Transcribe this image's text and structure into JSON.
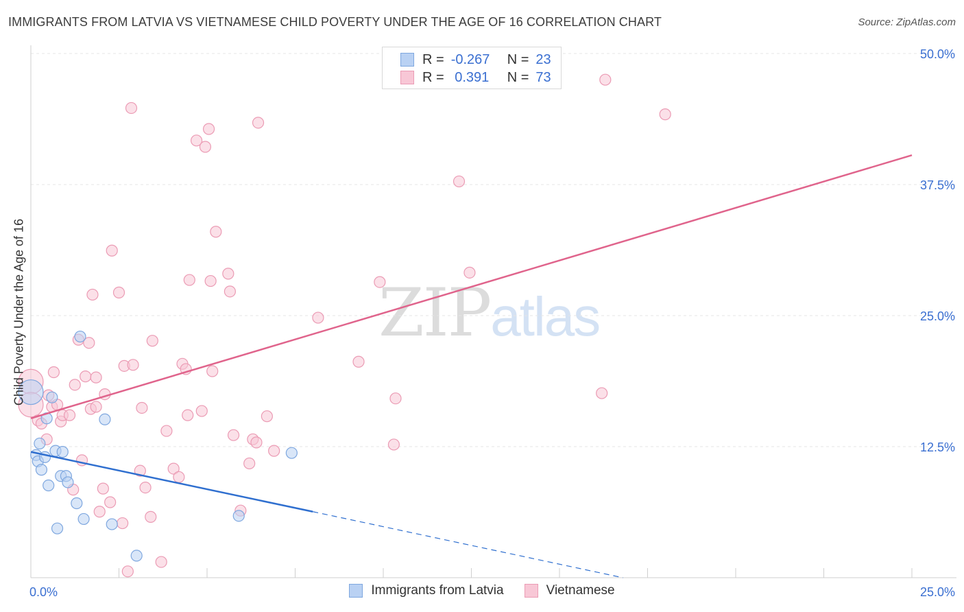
{
  "header": {
    "title": "IMMIGRANTS FROM LATVIA VS VIETNAMESE CHILD POVERTY UNDER THE AGE OF 16 CORRELATION CHART",
    "source": "Source: ZipAtlas.com"
  },
  "watermark": {
    "zip": "ZIP",
    "atlas": "atlas"
  },
  "legend": {
    "rows": [
      {
        "r_label": "R =",
        "r_value": "-0.267",
        "n_label": "N =",
        "n_value": "23"
      },
      {
        "r_label": "R =",
        "r_value": " 0.391",
        "n_label": "N =",
        "n_value": "73"
      }
    ]
  },
  "chart_data": {
    "type": "scatter",
    "title": "IMMIGRANTS FROM LATVIA VS VIETNAMESE CHILD POVERTY UNDER THE AGE OF 16 CORRELATION CHART",
    "xlabel": "",
    "ylabel": "Child Poverty Under the Age of 16",
    "xlim": [
      0,
      25
    ],
    "ylim": [
      0,
      50
    ],
    "x_tick_labels": [
      "0.0%",
      "25.0%"
    ],
    "y_ticks": [
      12.5,
      25.0,
      37.5,
      50.0
    ],
    "y_tick_labels": [
      "12.5%",
      "25.0%",
      "37.5%",
      "50.0%"
    ],
    "grid": true,
    "colors": {
      "latvia_fill": "#b9d1f3",
      "latvia_stroke": "#7ea7df",
      "latvia_line": "#2f6fcf",
      "viet_fill": "#f8c7d6",
      "viet_stroke": "#eb9bb4",
      "viet_line": "#e0648c",
      "tick_label": "#3a6fd1"
    },
    "series": [
      {
        "name": "Immigrants from Latvia",
        "r": -0.267,
        "n": 23,
        "points": [
          {
            "x": 0.0,
            "y": 17.7,
            "s": "large"
          },
          {
            "x": 0.15,
            "y": 11.7
          },
          {
            "x": 0.2,
            "y": 11.1
          },
          {
            "x": 0.25,
            "y": 12.8
          },
          {
            "x": 0.3,
            "y": 10.3
          },
          {
            "x": 0.4,
            "y": 11.5
          },
          {
            "x": 0.45,
            "y": 15.2
          },
          {
            "x": 0.5,
            "y": 8.8
          },
          {
            "x": 0.6,
            "y": 17.2
          },
          {
            "x": 0.7,
            "y": 12.1
          },
          {
            "x": 0.75,
            "y": 4.7
          },
          {
            "x": 0.85,
            "y": 9.7
          },
          {
            "x": 0.9,
            "y": 12.0
          },
          {
            "x": 1.0,
            "y": 9.7
          },
          {
            "x": 1.05,
            "y": 9.1
          },
          {
            "x": 1.3,
            "y": 7.1
          },
          {
            "x": 1.5,
            "y": 5.6
          },
          {
            "x": 1.4,
            "y": 23.0
          },
          {
            "x": 2.1,
            "y": 15.1
          },
          {
            "x": 2.3,
            "y": 5.1
          },
          {
            "x": 3.0,
            "y": 2.1
          },
          {
            "x": 5.9,
            "y": 5.9
          },
          {
            "x": 7.4,
            "y": 11.9
          }
        ],
        "trend": {
          "x": [
            0.0,
            8.0
          ],
          "y": [
            12.0,
            6.3
          ]
        },
        "trend_extension": {
          "x": [
            8.0,
            16.8
          ],
          "y": [
            6.3,
            0.0
          ]
        }
      },
      {
        "name": "Vietnamese",
        "r": 0.391,
        "n": 73,
        "points": [
          {
            "x": 0.0,
            "y": 18.7,
            "s": "large"
          },
          {
            "x": 0.0,
            "y": 16.5,
            "s": "large"
          },
          {
            "x": 0.2,
            "y": 15.0
          },
          {
            "x": 0.3,
            "y": 14.7
          },
          {
            "x": 0.45,
            "y": 13.2
          },
          {
            "x": 0.5,
            "y": 17.4
          },
          {
            "x": 0.6,
            "y": 16.3
          },
          {
            "x": 0.65,
            "y": 19.6
          },
          {
            "x": 0.75,
            "y": 16.5
          },
          {
            "x": 0.85,
            "y": 14.9
          },
          {
            "x": 0.9,
            "y": 15.5
          },
          {
            "x": 1.1,
            "y": 15.5
          },
          {
            "x": 1.2,
            "y": 8.4
          },
          {
            "x": 1.25,
            "y": 18.4
          },
          {
            "x": 1.35,
            "y": 22.7
          },
          {
            "x": 1.45,
            "y": 11.2
          },
          {
            "x": 1.55,
            "y": 19.2
          },
          {
            "x": 1.65,
            "y": 22.4
          },
          {
            "x": 1.7,
            "y": 16.1
          },
          {
            "x": 1.75,
            "y": 27.0
          },
          {
            "x": 1.85,
            "y": 16.3
          },
          {
            "x": 1.85,
            "y": 19.1
          },
          {
            "x": 1.95,
            "y": 6.3
          },
          {
            "x": 2.05,
            "y": 8.5
          },
          {
            "x": 2.1,
            "y": 17.5
          },
          {
            "x": 2.25,
            "y": 7.2
          },
          {
            "x": 2.3,
            "y": 31.2
          },
          {
            "x": 2.5,
            "y": 27.2
          },
          {
            "x": 2.6,
            "y": 5.2
          },
          {
            "x": 2.65,
            "y": 20.2
          },
          {
            "x": 2.75,
            "y": 0.6
          },
          {
            "x": 2.85,
            "y": 44.8
          },
          {
            "x": 2.9,
            "y": 20.3
          },
          {
            "x": 3.1,
            "y": 10.2
          },
          {
            "x": 3.15,
            "y": 16.2
          },
          {
            "x": 3.25,
            "y": 8.6
          },
          {
            "x": 3.4,
            "y": 5.8
          },
          {
            "x": 3.45,
            "y": 22.6
          },
          {
            "x": 3.7,
            "y": 1.5
          },
          {
            "x": 3.85,
            "y": 14.0
          },
          {
            "x": 4.05,
            "y": 10.4
          },
          {
            "x": 4.2,
            "y": 9.6
          },
          {
            "x": 4.3,
            "y": 20.4
          },
          {
            "x": 4.4,
            "y": 19.9
          },
          {
            "x": 4.45,
            "y": 15.5
          },
          {
            "x": 4.5,
            "y": 28.4
          },
          {
            "x": 4.7,
            "y": 41.7
          },
          {
            "x": 4.85,
            "y": 15.9
          },
          {
            "x": 4.95,
            "y": 41.1
          },
          {
            "x": 5.05,
            "y": 42.8
          },
          {
            "x": 5.1,
            "y": 28.3
          },
          {
            "x": 5.15,
            "y": 19.7
          },
          {
            "x": 5.25,
            "y": 33.0
          },
          {
            "x": 5.6,
            "y": 29.0
          },
          {
            "x": 5.65,
            "y": 27.3
          },
          {
            "x": 5.75,
            "y": 13.6
          },
          {
            "x": 5.95,
            "y": 6.4
          },
          {
            "x": 6.2,
            "y": 10.9
          },
          {
            "x": 6.3,
            "y": 13.2
          },
          {
            "x": 6.4,
            "y": 12.9
          },
          {
            "x": 6.45,
            "y": 43.4
          },
          {
            "x": 6.7,
            "y": 15.4
          },
          {
            "x": 6.9,
            "y": 12.1
          },
          {
            "x": 8.15,
            "y": 24.8
          },
          {
            "x": 9.3,
            "y": 20.6
          },
          {
            "x": 9.9,
            "y": 28.2
          },
          {
            "x": 10.3,
            "y": 12.7
          },
          {
            "x": 10.35,
            "y": 17.1
          },
          {
            "x": 12.15,
            "y": 37.8
          },
          {
            "x": 12.45,
            "y": 29.1
          },
          {
            "x": 16.3,
            "y": 47.5
          },
          {
            "x": 16.2,
            "y": 17.6
          },
          {
            "x": 18.0,
            "y": 44.2
          }
        ],
        "trend": {
          "x": [
            0.0,
            25.0
          ],
          "y": [
            15.2,
            40.3
          ]
        }
      }
    ]
  },
  "bottom_legend": [
    {
      "label": "Immigrants from Latvia"
    },
    {
      "label": "Vietnamese"
    }
  ]
}
